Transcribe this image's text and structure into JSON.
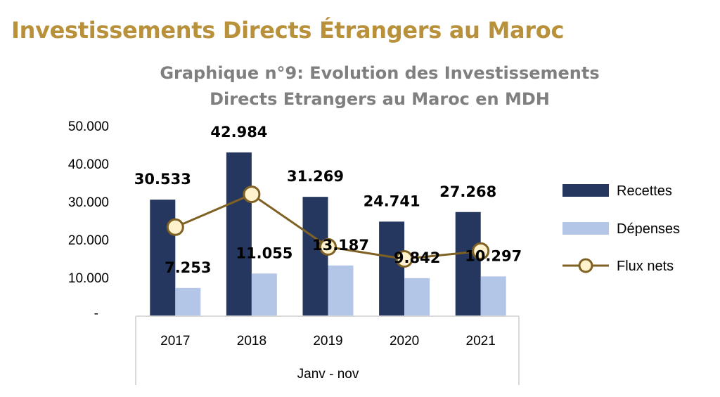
{
  "header": {
    "title": "Investissements Directs Étrangers au Maroc"
  },
  "chart_data": {
    "type": "bar",
    "title_lines": [
      "Graphique n°9: Evolution des Investissements",
      "Directs Etrangers au Maroc en MDH"
    ],
    "categories": [
      "2017",
      "2018",
      "2019",
      "2020",
      "2021"
    ],
    "xlabel": "Janv - nov",
    "ylim": [
      0,
      50000
    ],
    "yticks": [
      {
        "value": 0,
        "label": "-"
      },
      {
        "value": 10000,
        "label": "10.000"
      },
      {
        "value": 20000,
        "label": "20.000"
      },
      {
        "value": 30000,
        "label": "30.000"
      },
      {
        "value": 40000,
        "label": "40.000"
      },
      {
        "value": 50000,
        "label": "50.000"
      }
    ],
    "series": [
      {
        "name": "Recettes",
        "kind": "bar",
        "color": "#25375E",
        "values": [
          30533,
          42984,
          31269,
          24741,
          27268
        ],
        "labels": [
          "30.533",
          "42.984",
          "31.269",
          "24.741",
          "27.268"
        ]
      },
      {
        "name": "Dépenses",
        "kind": "bar",
        "color": "#B4C6E7",
        "values": [
          7253,
          11055,
          13187,
          9842,
          10297
        ],
        "labels": [
          "7.253",
          "11.055",
          "13.187",
          "9.842",
          "10.297"
        ]
      },
      {
        "name": "Flux nets",
        "kind": "line",
        "color": "#7F6124",
        "marker_fill": "#FFF2CC",
        "values": [
          23280,
          31929,
          18082,
          14899,
          16971
        ]
      }
    ],
    "legend_position": "right",
    "grid": false
  }
}
